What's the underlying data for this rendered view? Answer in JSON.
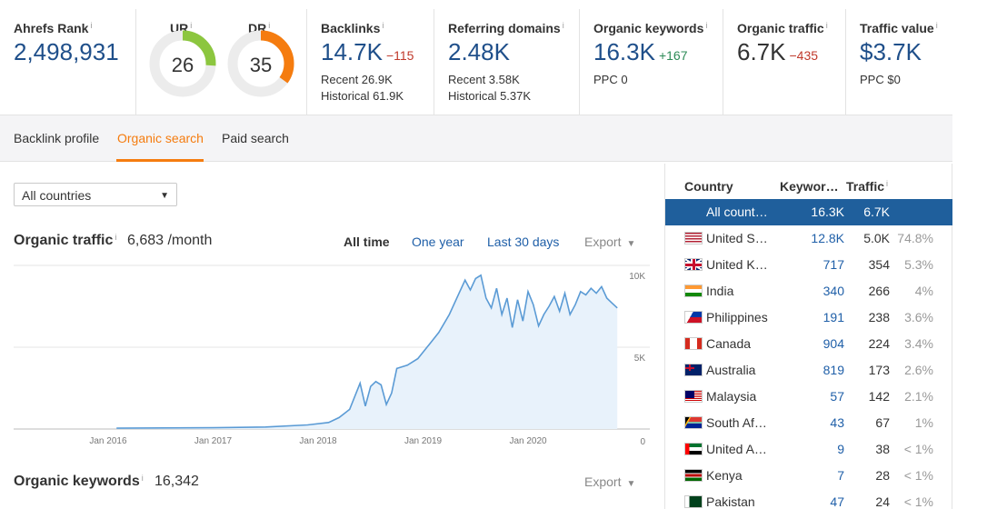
{
  "metrics": {
    "ahrefs_rank": {
      "label": "Ahrefs Rank",
      "value": "2,498,931"
    },
    "ur": {
      "label": "UR",
      "value": "26",
      "score": 26,
      "color": "#8cc63f"
    },
    "dr": {
      "label": "DR",
      "value": "35",
      "score": 35,
      "color": "#f57c0f"
    },
    "backlinks": {
      "label": "Backlinks",
      "value": "14.7K",
      "delta": "−115",
      "recent": "Recent 26.9K",
      "historical": "Historical 61.9K"
    },
    "referring_domains": {
      "label": "Referring domains",
      "value": "2.48K",
      "recent": "Recent 3.58K",
      "historical": "Historical 5.37K"
    },
    "organic_keywords": {
      "label": "Organic keywords",
      "value": "16.3K",
      "delta": "+167",
      "ppc": "PPC 0"
    },
    "organic_traffic": {
      "label": "Organic traffic",
      "value": "6.7K",
      "delta": "−435"
    },
    "traffic_value": {
      "label": "Traffic value",
      "value": "$3.7K",
      "ppc": "PPC $0"
    }
  },
  "info_glyph": "i",
  "tabs": [
    {
      "label": "Backlink profile",
      "active": false
    },
    {
      "label": "Organic search",
      "active": true
    },
    {
      "label": "Paid search",
      "active": false
    }
  ],
  "filter": {
    "selected": "All countries"
  },
  "organic_traffic_section": {
    "title": "Organic traffic",
    "value": "6,683 /month"
  },
  "ranges": {
    "all_time": "All time",
    "one_year": "One year",
    "last_30": "Last 30 days"
  },
  "export_label": "Export",
  "organic_keywords_section": {
    "title": "Organic keywords",
    "value": "16,342"
  },
  "chart_data": {
    "type": "area",
    "x_ticks": [
      "Jan 2016",
      "Jan 2017",
      "Jan 2018",
      "Jan 2019",
      "Jan 2020"
    ],
    "y_ticks": [
      "10K",
      "5K",
      "0"
    ],
    "ylim": [
      0,
      10000
    ],
    "xlim": [
      2015.1,
      2020.9
    ],
    "grid": true,
    "color": "#5b9bd5",
    "points": [
      [
        2016.08,
        50
      ],
      [
        2017.0,
        80
      ],
      [
        2017.5,
        120
      ],
      [
        2017.9,
        250
      ],
      [
        2018.1,
        400
      ],
      [
        2018.2,
        700
      ],
      [
        2018.3,
        1200
      ],
      [
        2018.4,
        2800
      ],
      [
        2018.45,
        1400
      ],
      [
        2018.5,
        2600
      ],
      [
        2018.55,
        2900
      ],
      [
        2018.6,
        2700
      ],
      [
        2018.65,
        1500
      ],
      [
        2018.7,
        2200
      ],
      [
        2018.75,
        3700
      ],
      [
        2018.85,
        3900
      ],
      [
        2018.95,
        4300
      ],
      [
        2019.05,
        5100
      ],
      [
        2019.15,
        5900
      ],
      [
        2019.25,
        7000
      ],
      [
        2019.35,
        8400
      ],
      [
        2019.4,
        9100
      ],
      [
        2019.45,
        8500
      ],
      [
        2019.5,
        9200
      ],
      [
        2019.55,
        9400
      ],
      [
        2019.6,
        8000
      ],
      [
        2019.65,
        7400
      ],
      [
        2019.7,
        8600
      ],
      [
        2019.75,
        7000
      ],
      [
        2019.8,
        8000
      ],
      [
        2019.85,
        6200
      ],
      [
        2019.9,
        7900
      ],
      [
        2019.95,
        6600
      ],
      [
        2020.0,
        8400
      ],
      [
        2020.05,
        7600
      ],
      [
        2020.1,
        6300
      ],
      [
        2020.15,
        7000
      ],
      [
        2020.2,
        7500
      ],
      [
        2020.25,
        8100
      ],
      [
        2020.3,
        7200
      ],
      [
        2020.35,
        8300
      ],
      [
        2020.4,
        7000
      ],
      [
        2020.45,
        7600
      ],
      [
        2020.5,
        8400
      ],
      [
        2020.55,
        8200
      ],
      [
        2020.6,
        8600
      ],
      [
        2020.65,
        8300
      ],
      [
        2020.7,
        8700
      ],
      [
        2020.75,
        8000
      ],
      [
        2020.8,
        7700
      ],
      [
        2020.85,
        7400
      ]
    ]
  },
  "country_table": {
    "headers": {
      "country": "Country",
      "keywords": "Keywor…",
      "traffic": "Traffic"
    },
    "rows": [
      {
        "country": "All count…",
        "keywords": "16.3K",
        "traffic": "6.7K",
        "pct": "",
        "flag": "",
        "selected": true
      },
      {
        "country": "United S…",
        "keywords": "12.8K",
        "traffic": "5.0K",
        "pct": "74.8%",
        "flag": "us"
      },
      {
        "country": "United K…",
        "keywords": "717",
        "traffic": "354",
        "pct": "5.3%",
        "flag": "gb"
      },
      {
        "country": "India",
        "keywords": "340",
        "traffic": "266",
        "pct": "4%",
        "flag": "in"
      },
      {
        "country": "Philippines",
        "keywords": "191",
        "traffic": "238",
        "pct": "3.6%",
        "flag": "ph"
      },
      {
        "country": "Canada",
        "keywords": "904",
        "traffic": "224",
        "pct": "3.4%",
        "flag": "ca"
      },
      {
        "country": "Australia",
        "keywords": "819",
        "traffic": "173",
        "pct": "2.6%",
        "flag": "au"
      },
      {
        "country": "Malaysia",
        "keywords": "57",
        "traffic": "142",
        "pct": "2.1%",
        "flag": "my"
      },
      {
        "country": "South Af…",
        "keywords": "43",
        "traffic": "67",
        "pct": "1%",
        "flag": "za"
      },
      {
        "country": "United A…",
        "keywords": "9",
        "traffic": "38",
        "pct": "< 1%",
        "flag": "ae"
      },
      {
        "country": "Kenya",
        "keywords": "7",
        "traffic": "28",
        "pct": "< 1%",
        "flag": "ke"
      },
      {
        "country": "Pakistan",
        "keywords": "47",
        "traffic": "24",
        "pct": "< 1%",
        "flag": "pk"
      }
    ]
  }
}
